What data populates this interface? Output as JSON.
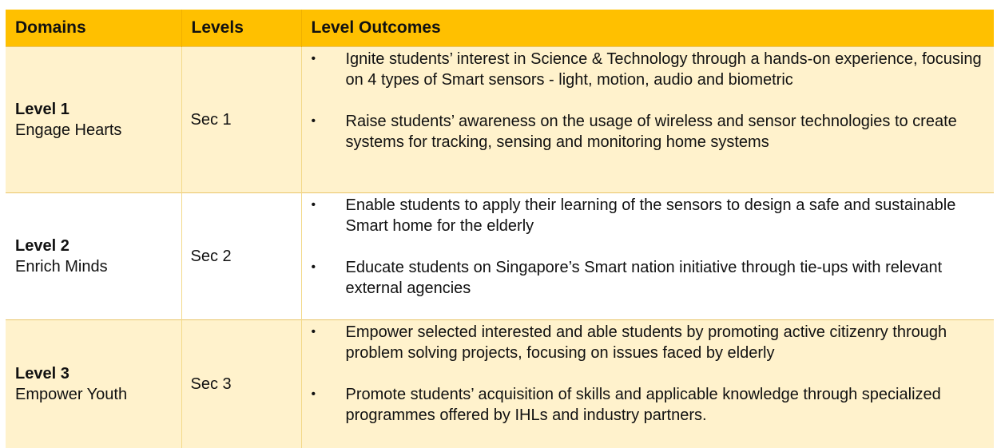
{
  "table": {
    "headers": [
      "Domains",
      "Levels",
      "Level Outcomes"
    ],
    "bullet_symbol": "•",
    "rows": [
      {
        "domain_level": "Level 1",
        "domain_desc": "Engage Hearts",
        "level": "Sec 1",
        "outcomes": [
          "Ignite students’ interest in Science & Technology through a hands-on experience, focusing on 4 types of Smart sensors - light, motion, audio and biometric",
          "Raise students’ awareness on the usage of wireless and sensor technologies to create systems for tracking, sensing and monitoring home systems"
        ]
      },
      {
        "domain_level": "Level 2",
        "domain_desc": "Enrich Minds",
        "level": "Sec 2",
        "outcomes": [
          "Enable students to apply their learning of the sensors to design a safe and sustainable Smart home for the elderly",
          "Educate students on Singapore’s Smart nation initiative through tie-ups with relevant external agencies"
        ]
      },
      {
        "domain_level": "Level 3",
        "domain_desc": "Empower Youth",
        "level": "Sec 3",
        "outcomes": [
          "Empower selected interested and able students by promoting active citizenry through problem solving projects, focusing on issues faced by elderly",
          "Promote students’ acquisition of skills and applicable knowledge through specialized programmes offered by IHLs and industry partners."
        ]
      }
    ]
  },
  "colors": {
    "header_bg": "#ffc000",
    "row_tint": "#fff2cc",
    "row_plain": "#ffffff",
    "text": "#111111"
  }
}
